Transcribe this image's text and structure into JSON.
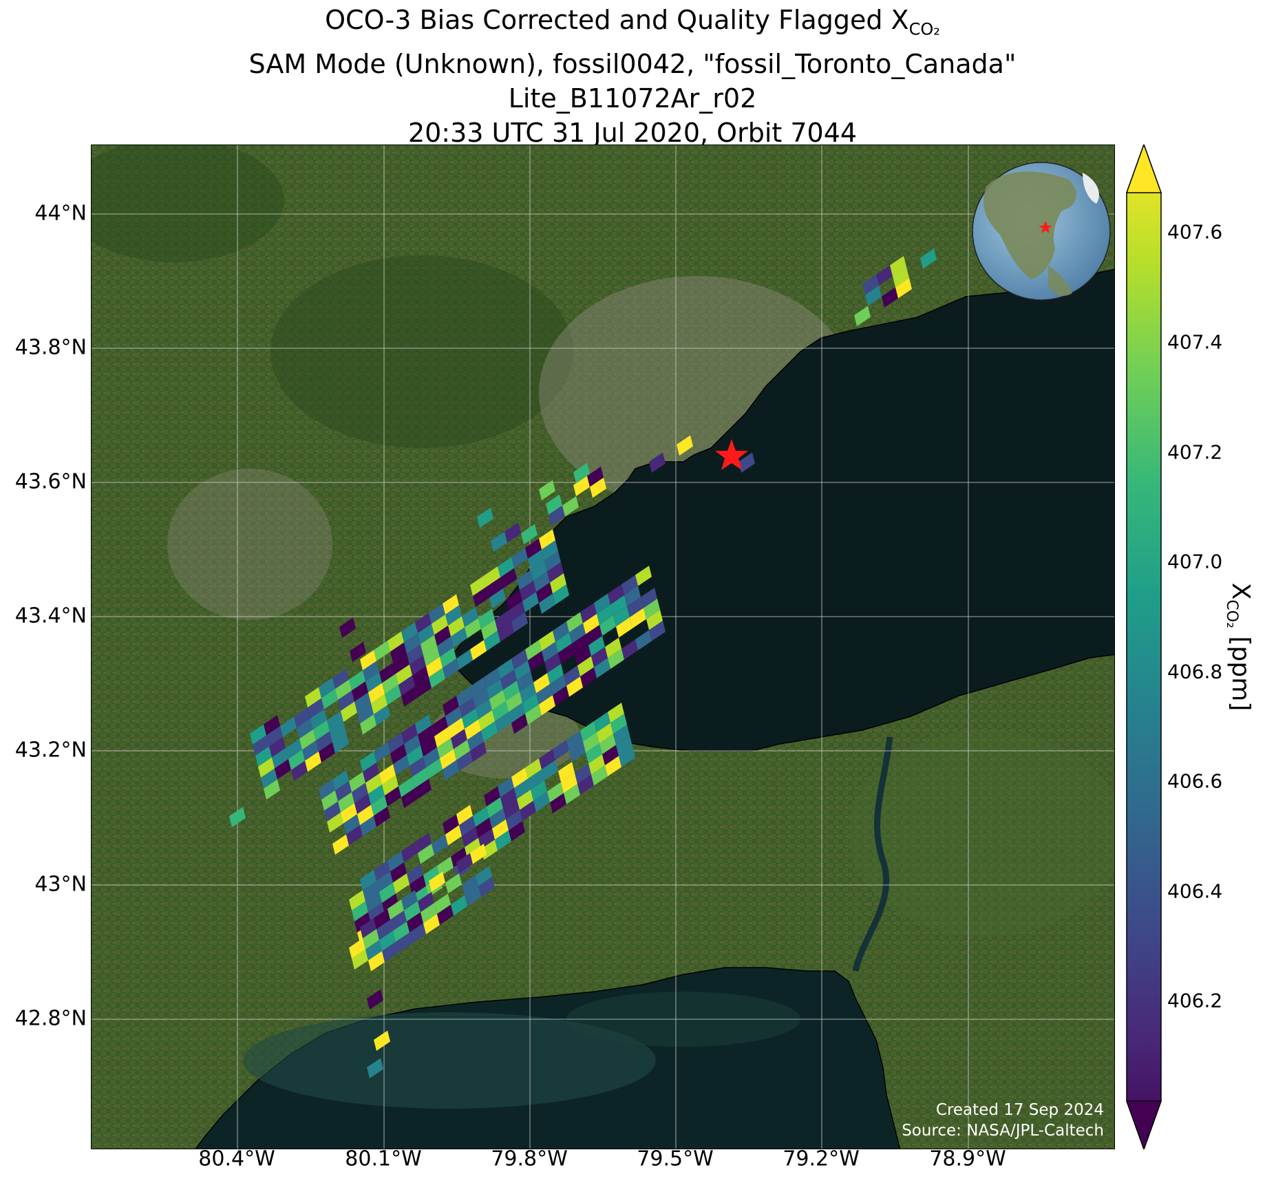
{
  "title": {
    "line1_prefix": "OCO-3 Bias Corrected and Quality Flagged X",
    "line1_sub": "CO₂",
    "line2": "SAM Mode (Unknown), fossil0042, \"fossil_Toronto_Canada\"",
    "line3": "Lite_B11072Ar_r02",
    "line4": "20:33 UTC 31 Jul 2020, Orbit 7044"
  },
  "axes": {
    "lat_ticks": [
      "44°N",
      "43.8°N",
      "43.6°N",
      "43.4°N",
      "43.2°N",
      "43°N",
      "42.8°N"
    ],
    "lon_ticks": [
      "80.4°W",
      "80.1°W",
      "79.8°W",
      "79.5°W",
      "79.2°W",
      "78.9°W"
    ]
  },
  "colorbar": {
    "label_prefix": "X",
    "label_sub": "CO₂",
    "label_suffix": " [ppm]",
    "ticks": [
      "407.6",
      "407.4",
      "407.2",
      "407.0",
      "406.8",
      "406.6",
      "406.4",
      "406.2"
    ],
    "colormap": [
      "#440154",
      "#482878",
      "#3e4989",
      "#31688e",
      "#26828e",
      "#1f9e89",
      "#35b779",
      "#6ece58",
      "#b5de2b",
      "#fde725"
    ]
  },
  "credits": {
    "created": "Created 17 Sep 2024",
    "source": "Source: NASA/JPL-Caltech"
  },
  "colors": {
    "land": "#3d5a28",
    "lake": "#0b1c1e",
    "target_marker": "#ff1a1a"
  },
  "icons": {
    "target": "star-icon",
    "inset": "globe-inset-icon"
  }
}
